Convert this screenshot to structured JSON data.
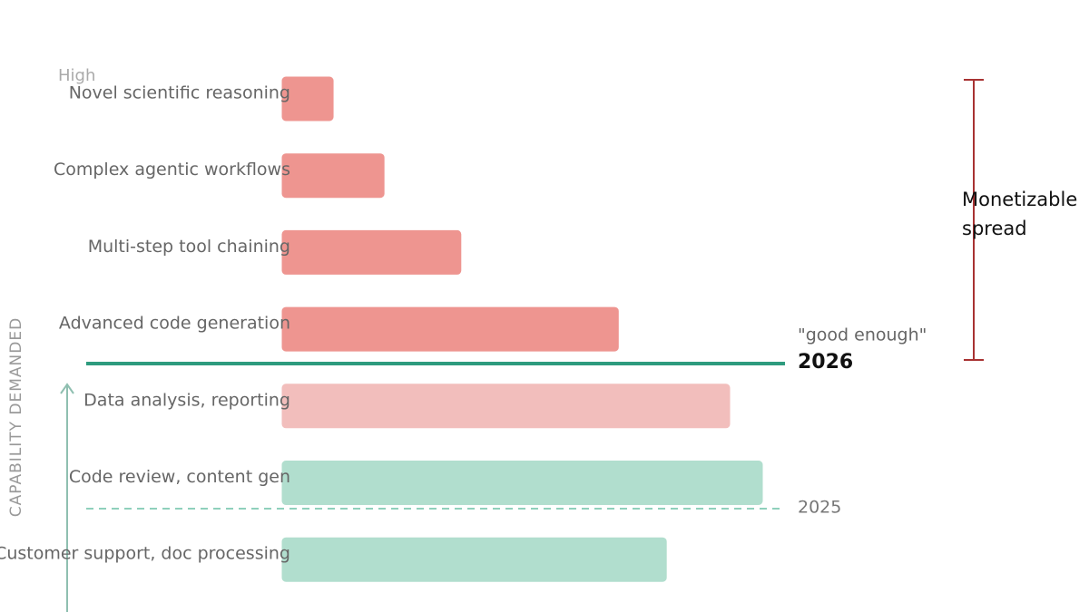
{
  "chart_data": {
    "type": "bar",
    "orientation": "horizontal",
    "y_axis_title": "CAPABILITY DEMANDED",
    "axis_top_label": "High",
    "categories": [
      "Novel scientific reasoning",
      "Complex agentic workflows",
      "Multi-step tool chaining",
      "Advanced code generation",
      "Data analysis, reporting",
      "Code review, content gen",
      "Customer support, doc processing"
    ],
    "values": [
      10.6,
      21.2,
      37.2,
      70,
      93.2,
      100,
      80
    ],
    "colors": [
      "#ee9590",
      "#ee9590",
      "#ee9590",
      "#ee9590",
      "#f2bebc",
      "#b1dece",
      "#b1dece"
    ],
    "thresholds": [
      {
        "label": "2026",
        "sublabel": "\"good enough\"",
        "style": "solid",
        "color": "#2e9b7e"
      },
      {
        "label": "2025",
        "style": "dashed",
        "color": "#8fd0bc"
      }
    ],
    "annotation_lines": [
      "Monetizable",
      "spread"
    ]
  }
}
